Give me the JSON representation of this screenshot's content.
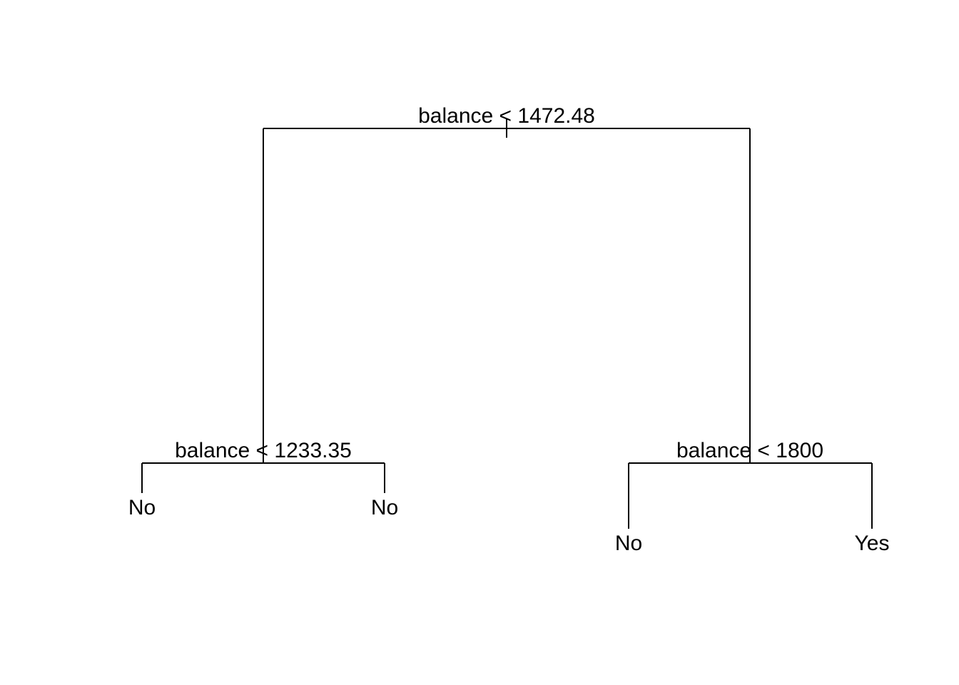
{
  "tree": {
    "root_split": "balance < 1472.48",
    "left_split": "balance < 1233.35",
    "right_split": "balance < 1800",
    "leaves": {
      "left_left": "No",
      "left_right": "No",
      "right_left": "No",
      "right_right": "Yes"
    }
  },
  "colors": {
    "line": "#000000",
    "text": "#000000",
    "background": "#ffffff"
  }
}
